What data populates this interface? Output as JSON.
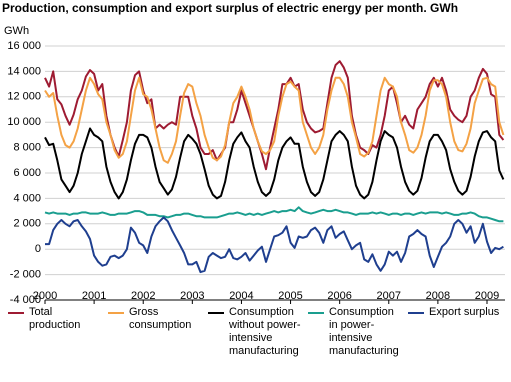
{
  "chart_data": {
    "type": "line",
    "title": "Production, consumption and export surplus of electric energy per month. GWh",
    "y_unit": "GWh",
    "categories": [
      "2000",
      null,
      null,
      null,
      null,
      null,
      null,
      null,
      null,
      null,
      null,
      null,
      "2001",
      null,
      null,
      null,
      null,
      null,
      null,
      null,
      null,
      null,
      null,
      null,
      "2002",
      null,
      null,
      null,
      null,
      null,
      null,
      null,
      null,
      null,
      null,
      null,
      "2003",
      null,
      null,
      null,
      null,
      null,
      null,
      null,
      null,
      null,
      null,
      null,
      "2004",
      null,
      null,
      null,
      null,
      null,
      null,
      null,
      null,
      null,
      null,
      null,
      "2005",
      null,
      null,
      null,
      null,
      null,
      null,
      null,
      null,
      null,
      null,
      null,
      "2006",
      null,
      null,
      null,
      null,
      null,
      null,
      null,
      null,
      null,
      null,
      null,
      "2007",
      null,
      null,
      null,
      null,
      null,
      null,
      null,
      null,
      null,
      null,
      null,
      "2008",
      null,
      null,
      null,
      null,
      null,
      null,
      null,
      null,
      null,
      null,
      null,
      "2009",
      null,
      null,
      null,
      null
    ],
    "ylim": [
      -4000,
      16000
    ],
    "yticks": [
      {
        "value": -4000,
        "label": "-4 000"
      },
      {
        "value": -2000,
        "label": "-2 000"
      },
      0,
      {
        "value": 2000,
        "label": "2 000"
      },
      {
        "value": 4000,
        "label": "4 000"
      },
      {
        "value": 6000,
        "label": "6 000"
      },
      {
        "value": 8000,
        "label": "8 000"
      },
      {
        "value": 10000,
        "label": "10 000"
      },
      {
        "value": 12000,
        "label": "12 000"
      },
      {
        "value": 14000,
        "label": "14 000"
      },
      {
        "value": 16000,
        "label": "16 000"
      }
    ],
    "grid": true,
    "legend": "bottom",
    "series": [
      {
        "name": "Total production",
        "color": "#9e1b32",
        "values": [
          13500,
          12800,
          14000,
          11800,
          11400,
          10500,
          9800,
          10600,
          11800,
          12500,
          13600,
          14100,
          13800,
          12500,
          13000,
          10500,
          9000,
          8000,
          7300,
          8600,
          10000,
          12500,
          13700,
          14000,
          12500,
          11500,
          11800,
          9500,
          9800,
          9500,
          9800,
          10000,
          9800,
          12000,
          12000,
          12000,
          10500,
          9500,
          8000,
          7500,
          7500,
          7800,
          7000,
          7500,
          8000,
          10000,
          10000,
          11000,
          12500,
          11500,
          10500,
          9500,
          8500,
          7500,
          6300,
          8000,
          9500,
          11000,
          13000,
          13000,
          13500,
          12800,
          13000,
          11000,
          10000,
          9500,
          9200,
          9300,
          9500,
          11500,
          13500,
          14500,
          14800,
          14300,
          13500,
          10500,
          9000,
          8000,
          7800,
          7500,
          8200,
          8000,
          9000,
          10500,
          12500,
          12800,
          11500,
          10000,
          10500,
          9800,
          9500,
          11000,
          11500,
          12000,
          13000,
          13500,
          12800,
          13500,
          12500,
          11000,
          10500,
          10200,
          10000,
          10500,
          12000,
          12500,
          13500,
          14200,
          13800,
          12200,
          12000,
          9000,
          8600
        ]
      },
      {
        "name": "Gross consumption",
        "color": "#f4a245",
        "values": [
          12500,
          12000,
          12300,
          10500,
          9000,
          8200,
          8000,
          8500,
          9500,
          11000,
          12500,
          13500,
          13000,
          12200,
          11800,
          10000,
          9000,
          7800,
          7200,
          7500,
          8500,
          10500,
          12500,
          13500,
          12200,
          12000,
          11000,
          9500,
          8000,
          7000,
          6800,
          7500,
          8500,
          10500,
          12300,
          13000,
          12800,
          11500,
          10500,
          9000,
          8000,
          7200,
          7000,
          7300,
          8200,
          10000,
          11500,
          12000,
          12800,
          12000,
          11000,
          9500,
          8500,
          7700,
          7500,
          7800,
          8500,
          10500,
          12000,
          13000,
          13200,
          12800,
          12500,
          10000,
          9000,
          8000,
          7500,
          8000,
          9000,
          11000,
          12500,
          13500,
          13500,
          13000,
          12000,
          10000,
          8800,
          7500,
          7300,
          7600,
          8500,
          10500,
          12500,
          13500,
          13000,
          12800,
          12000,
          10000,
          9000,
          7800,
          7600,
          8000,
          9000,
          10500,
          12500,
          13300,
          13300,
          13000,
          12000,
          10000,
          8500,
          7800,
          7700,
          8300,
          9500,
          11500,
          12500,
          13400,
          13500,
          13000,
          12800,
          10000,
          9000
        ]
      },
      {
        "name": "Consumption without power-intensive manufacturing",
        "color": "#000000",
        "values": [
          8800,
          8200,
          8300,
          7000,
          5500,
          5000,
          4500,
          5000,
          6000,
          7500,
          8500,
          9500,
          9000,
          8800,
          8500,
          6500,
          5300,
          4500,
          4000,
          4500,
          5500,
          7000,
          8300,
          9000,
          9000,
          8800,
          8000,
          6500,
          5300,
          4800,
          4300,
          4700,
          5700,
          7200,
          8500,
          9000,
          8700,
          8300,
          7500,
          6300,
          5000,
          4300,
          4000,
          4200,
          5300,
          7000,
          8300,
          8800,
          9200,
          8500,
          8000,
          6500,
          5300,
          4500,
          4200,
          4500,
          5500,
          7000,
          8000,
          8500,
          8800,
          8300,
          8300,
          6500,
          5300,
          4500,
          4200,
          4500,
          5500,
          7000,
          8500,
          9000,
          9300,
          9000,
          8500,
          6500,
          5000,
          4300,
          4000,
          4300,
          5300,
          7000,
          8500,
          9300,
          9000,
          8800,
          8000,
          6500,
          5300,
          4600,
          4300,
          4600,
          5600,
          7200,
          8500,
          9000,
          9000,
          8500,
          7800,
          6300,
          5300,
          4600,
          4300,
          4600,
          5700,
          7300,
          8500,
          9200,
          9300,
          8800,
          8500,
          6200,
          5500
        ]
      },
      {
        "name": "Consumption in power-intensive manufacturing",
        "color": "#1a9e8f",
        "values": [
          2900,
          2800,
          2900,
          2800,
          2800,
          2800,
          2700,
          2800,
          2800,
          2900,
          2900,
          2800,
          2800,
          2800,
          2900,
          2800,
          2700,
          2700,
          2800,
          2800,
          2800,
          2900,
          3000,
          3000,
          2900,
          2700,
          2700,
          2700,
          2600,
          2600,
          2500,
          2600,
          2700,
          2700,
          2800,
          2800,
          2700,
          2600,
          2600,
          2500,
          2500,
          2500,
          2500,
          2600,
          2700,
          2800,
          2800,
          2900,
          2800,
          2700,
          2800,
          2700,
          2800,
          2700,
          2800,
          2900,
          3000,
          2900,
          3000,
          3000,
          3100,
          3000,
          3300,
          3000,
          2900,
          2800,
          2900,
          3000,
          3100,
          3000,
          3000,
          3100,
          3000,
          2900,
          2900,
          2800,
          2700,
          2800,
          2800,
          2800,
          2900,
          2800,
          2900,
          2800,
          2700,
          2800,
          2800,
          2700,
          2800,
          2800,
          2700,
          2800,
          2900,
          2800,
          2900,
          2900,
          2900,
          2800,
          2900,
          2800,
          2700,
          2700,
          2800,
          2800,
          2900,
          2800,
          2600,
          2500,
          2500,
          2400,
          2300,
          2200,
          2200
        ]
      },
      {
        "name": "Export surplus",
        "color": "#1f3f8f",
        "values": [
          400,
          400,
          1500,
          2000,
          2300,
          2000,
          1800,
          2200,
          2300,
          1800,
          1400,
          800,
          -500,
          -1000,
          -1300,
          -1200,
          -600,
          -500,
          -700,
          -500,
          0,
          1700,
          1300,
          500,
          300,
          -300,
          1000,
          1800,
          2200,
          2500,
          2200,
          1500,
          900,
          300,
          -300,
          -1200,
          -1200,
          -1000,
          -1800,
          -1700,
          -600,
          -300,
          -500,
          -700,
          -600,
          0,
          -700,
          -800,
          -600,
          -300,
          -900,
          -500,
          -100,
          200,
          -1000,
          0,
          1000,
          1100,
          1300,
          1800,
          500,
          100,
          1000,
          900,
          1000,
          1500,
          1700,
          1300,
          500,
          1500,
          1800,
          900,
          1200,
          1400,
          700,
          0,
          300,
          500,
          -800,
          -1000,
          -400,
          -1200,
          -1700,
          -1200,
          -200,
          -500,
          -200,
          -1000,
          -300,
          1000,
          1200,
          1500,
          1200,
          1000,
          -500,
          -1400,
          -600,
          200,
          500,
          1000,
          2000,
          2300,
          2000,
          1300,
          1800,
          500,
          1000,
          2000,
          600,
          -300,
          100,
          0,
          200
        ]
      }
    ]
  }
}
